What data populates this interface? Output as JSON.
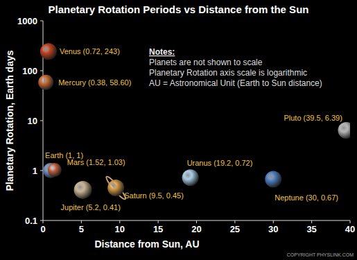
{
  "chart_data": {
    "type": "scatter",
    "title": "Planetary Rotation Periods vs Distance from the Sun",
    "x_label": "Distance from Sun, AU",
    "y_label": "Planetary Rotation, Earth days",
    "x": [
      0.38,
      0.72,
      1,
      1.52,
      5.2,
      9.5,
      19.2,
      30,
      39.5
    ],
    "values": [
      58.6,
      243,
      1,
      1.03,
      0.41,
      0.45,
      0.72,
      0.67,
      6.39
    ],
    "value_labels": [
      "Mercury (0.38, 58.60)",
      "Venus (0.72, 243)",
      "Earth (1, 1)",
      "Mars (1.52, 1.03)",
      "Jupiter (5.2, 0.41)",
      "Saturn (9.5, 0.45)",
      "Uranus (19.2, 0.72)",
      "Neptune (30, 0.67)",
      "Pluto (39.5, 6.39)"
    ],
    "colors": [
      "#c86a32",
      "#c4431f",
      "#6f8fc4",
      "#c2603e",
      "#c9b494",
      "#d29844",
      "#a6cde6",
      "#4f7fc2",
      "#b4b4b4"
    ],
    "data_labels": true,
    "xlim": [
      0,
      40
    ],
    "ylim": [
      0.1,
      1000
    ],
    "xticks": [
      0,
      5,
      10,
      15,
      20,
      25,
      30,
      35,
      40
    ],
    "yticks": [
      0.1,
      1,
      10,
      100,
      1000
    ],
    "log": "y",
    "grid": false,
    "notes": [
      "Notes:",
      "Planets are not shown to scale",
      "Planetary Rotation axis scale is logarithmic",
      "AU = Astronomical Unit (Earth to Sun distance)"
    ],
    "copyright": "COPYRIGHT PHYSLINK.COM"
  }
}
